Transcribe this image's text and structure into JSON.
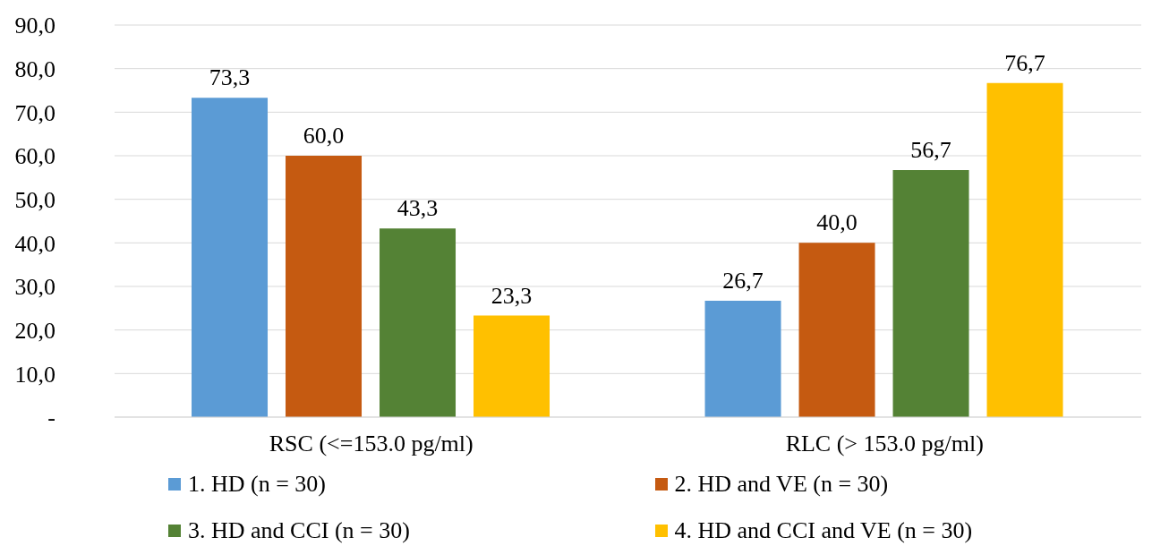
{
  "chart_data": {
    "type": "bar",
    "categories": [
      "RSC (<=153.0 pg/ml)",
      "RLC (> 153.0 pg/ml)"
    ],
    "series": [
      {
        "name": "1. HD (n = 30)",
        "color": "#5b9bd5",
        "values": [
          73.3,
          26.7
        ],
        "value_labels": [
          "73,3",
          "26,7"
        ]
      },
      {
        "name": "2. HD and VE (n = 30)",
        "color": "#c55a11",
        "values": [
          60.0,
          40.0
        ],
        "value_labels": [
          "60,0",
          "40,0"
        ]
      },
      {
        "name": "3. HD and CCI (n = 30)",
        "color": "#548235",
        "values": [
          43.3,
          56.7
        ],
        "value_labels": [
          "43,3",
          "56,7"
        ]
      },
      {
        "name": "4. HD and CCI and VE (n = 30)",
        "color": "#ffc000",
        "values": [
          23.3,
          76.7
        ],
        "value_labels": [
          "23,3",
          "76,7"
        ]
      }
    ],
    "ylim": [
      0,
      90
    ],
    "yticks": [
      {
        "value": 0,
        "label": "-"
      },
      {
        "value": 10,
        "label": "10,0"
      },
      {
        "value": 20,
        "label": "20,0"
      },
      {
        "value": 30,
        "label": "30,0"
      },
      {
        "value": 40,
        "label": "40,0"
      },
      {
        "value": 50,
        "label": "50,0"
      },
      {
        "value": 60,
        "label": "60,0"
      },
      {
        "value": 70,
        "label": "70,0"
      },
      {
        "value": 80,
        "label": "80,0"
      },
      {
        "value": 90,
        "label": "90,0"
      }
    ],
    "grid": "y",
    "legend": "bottom"
  }
}
